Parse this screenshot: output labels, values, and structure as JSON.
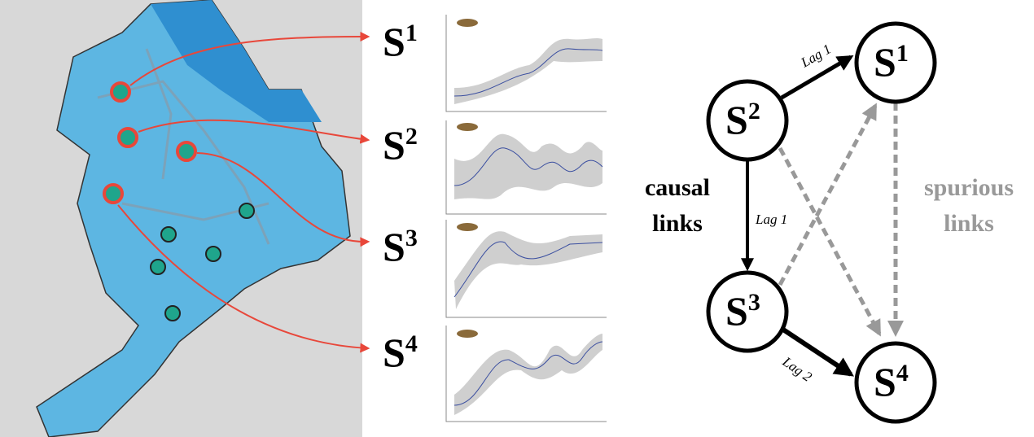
{
  "station_labels": [
    {
      "base": "S",
      "sup": "1"
    },
    {
      "base": "S",
      "sup": "2"
    },
    {
      "base": "S",
      "sup": "3"
    },
    {
      "base": "S",
      "sup": "4"
    }
  ],
  "graph": {
    "nodes": [
      {
        "base": "S",
        "sup": "1"
      },
      {
        "base": "S",
        "sup": "2"
      },
      {
        "base": "S",
        "sup": "3"
      },
      {
        "base": "S",
        "sup": "4"
      }
    ],
    "edges": [
      {
        "label": "Lag 1"
      },
      {
        "label": "Lag 1"
      },
      {
        "label": "Lag 2"
      }
    ],
    "causal_label": [
      "causal",
      "links"
    ],
    "spurious_label": [
      "spurious",
      "links"
    ]
  }
}
